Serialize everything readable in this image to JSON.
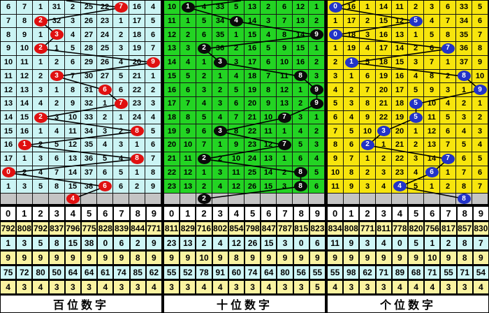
{
  "column_headers": [
    "0",
    "1",
    "2",
    "3",
    "4",
    "5",
    "6",
    "7",
    "8",
    "9"
  ],
  "colors": {
    "grid_line": "#161616",
    "gray_row_bg": "#c4c4c4",
    "stat_yellow": "#faf3a1",
    "stat_cyan": "#cff6f6",
    "header_bg": "#ffffff",
    "trend_line": "#000000"
  },
  "panels": [
    {
      "id": "hundreds",
      "footer": "百位数字",
      "colors": {
        "bg": "#cbf4f4",
        "circle": "#e01010"
      },
      "entry_x": 94,
      "rows": [
        [
          "6",
          "7",
          "1",
          "31",
          "2",
          "25",
          "22",
          "7",
          "16",
          "4"
        ],
        [
          "7",
          "8",
          "2",
          "32",
          "3",
          "26",
          "23",
          "1",
          "17",
          "5"
        ],
        [
          "8",
          "9",
          "1",
          "3",
          "4",
          "27",
          "24",
          "2",
          "18",
          "6"
        ],
        [
          "9",
          "10",
          "2",
          "1",
          "5",
          "28",
          "25",
          "3",
          "19",
          "7"
        ],
        [
          "10",
          "11",
          "1",
          "2",
          "6",
          "29",
          "26",
          "4",
          "20",
          "9"
        ],
        [
          "11",
          "12",
          "2",
          "3",
          "7",
          "30",
          "27",
          "5",
          "21",
          "1"
        ],
        [
          "12",
          "13",
          "3",
          "1",
          "8",
          "31",
          "6",
          "6",
          "22",
          "2"
        ],
        [
          "13",
          "14",
          "4",
          "2",
          "9",
          "32",
          "1",
          "7",
          "23",
          "3"
        ],
        [
          "14",
          "15",
          "2",
          "3",
          "10",
          "33",
          "2",
          "1",
          "24",
          "4"
        ],
        [
          "15",
          "16",
          "1",
          "4",
          "11",
          "34",
          "3",
          "2",
          "8",
          "5"
        ],
        [
          "16",
          "1",
          "2",
          "5",
          "12",
          "35",
          "4",
          "3",
          "1",
          "6"
        ],
        [
          "17",
          "1",
          "3",
          "6",
          "13",
          "36",
          "5",
          "4",
          "8",
          "7"
        ],
        [
          "0",
          "2",
          "4",
          "7",
          "14",
          "37",
          "6",
          "5",
          "1",
          "8"
        ],
        [
          "1",
          "3",
          "5",
          "8",
          "15",
          "38",
          "6",
          "6",
          "2",
          "9"
        ]
      ],
      "circle_cols": [
        7,
        2,
        3,
        2,
        9,
        3,
        6,
        7,
        2,
        8,
        1,
        8,
        0,
        6
      ],
      "gray_circle_col": 4,
      "stats": [
        [
          "792",
          "808",
          "792",
          "837",
          "796",
          "775",
          "828",
          "839",
          "844",
          "771"
        ],
        [
          "1",
          "3",
          "5",
          "8",
          "15",
          "38",
          "0",
          "6",
          "2",
          "9"
        ],
        [
          "9",
          "9",
          "9",
          "9",
          "9",
          "9",
          "9",
          "9",
          "8",
          "9"
        ],
        [
          "75",
          "72",
          "80",
          "50",
          "64",
          "64",
          "61",
          "74",
          "85",
          "62"
        ],
        [
          "4",
          "3",
          "4",
          "3",
          "3",
          "3",
          "4",
          "3",
          "3",
          "4"
        ]
      ]
    },
    {
      "id": "tens",
      "footer": "十位数字",
      "colors": {
        "bg": "#23d423",
        "circle": "#0a0a0a"
      },
      "entry_x": 110,
      "rows": [
        [
          "10",
          "1",
          "4",
          "33",
          "5",
          "13",
          "2",
          "6",
          "12",
          "1"
        ],
        [
          "11",
          "1",
          "5",
          "34",
          "4",
          "14",
          "3",
          "7",
          "13",
          "2"
        ],
        [
          "12",
          "2",
          "6",
          "35",
          "1",
          "15",
          "4",
          "8",
          "14",
          "9"
        ],
        [
          "13",
          "3",
          "2",
          "36",
          "2",
          "16",
          "5",
          "9",
          "15",
          "1"
        ],
        [
          "14",
          "4",
          "1",
          "3",
          "3",
          "17",
          "6",
          "10",
          "16",
          "2"
        ],
        [
          "15",
          "5",
          "2",
          "1",
          "4",
          "18",
          "7",
          "11",
          "8",
          "3"
        ],
        [
          "16",
          "6",
          "3",
          "2",
          "5",
          "19",
          "8",
          "12",
          "1",
          "9"
        ],
        [
          "17",
          "7",
          "4",
          "3",
          "6",
          "20",
          "9",
          "13",
          "2",
          "9"
        ],
        [
          "18",
          "8",
          "5",
          "4",
          "7",
          "21",
          "10",
          "7",
          "3",
          "1"
        ],
        [
          "19",
          "9",
          "6",
          "3",
          "8",
          "22",
          "11",
          "1",
          "4",
          "2"
        ],
        [
          "20",
          "10",
          "7",
          "1",
          "9",
          "23",
          "12",
          "7",
          "5",
          "3"
        ],
        [
          "21",
          "11",
          "2",
          "2",
          "10",
          "24",
          "13",
          "1",
          "6",
          "4"
        ],
        [
          "22",
          "12",
          "1",
          "3",
          "11",
          "25",
          "14",
          "2",
          "8",
          "5"
        ],
        [
          "23",
          "13",
          "2",
          "4",
          "12",
          "26",
          "15",
          "3",
          "8",
          "6"
        ]
      ],
      "circle_cols": [
        1,
        4,
        9,
        2,
        3,
        8,
        9,
        9,
        7,
        3,
        7,
        2,
        8,
        8
      ],
      "gray_circle_col": 2,
      "stats": [
        [
          "811",
          "829",
          "716",
          "802",
          "854",
          "798",
          "847",
          "787",
          "815",
          "823"
        ],
        [
          "23",
          "13",
          "2",
          "4",
          "12",
          "26",
          "15",
          "3",
          "0",
          "6"
        ],
        [
          "9",
          "9",
          "10",
          "9",
          "8",
          "9",
          "9",
          "9",
          "9",
          "9"
        ],
        [
          "55",
          "52",
          "78",
          "91",
          "60",
          "74",
          "64",
          "80",
          "56",
          "55"
        ],
        [
          "3",
          "3",
          "4",
          "4",
          "3",
          "3",
          "4",
          "3",
          "3",
          "5"
        ]
      ]
    },
    {
      "id": "units",
      "footer": "个位数字",
      "colors": {
        "bg": "#f7e50d",
        "circle": "#2233c8"
      },
      "entry_x": 40,
      "rows": [
        [
          "0",
          "16",
          "1",
          "14",
          "11",
          "2",
          "3",
          "6",
          "33",
          "5"
        ],
        [
          "1",
          "17",
          "2",
          "15",
          "12",
          "5",
          "4",
          "7",
          "34",
          "6"
        ],
        [
          "0",
          "18",
          "3",
          "16",
          "13",
          "1",
          "5",
          "8",
          "35",
          "7"
        ],
        [
          "1",
          "19",
          "4",
          "17",
          "14",
          "2",
          "6",
          "7",
          "36",
          "8"
        ],
        [
          "2",
          "1",
          "5",
          "18",
          "15",
          "3",
          "7",
          "1",
          "37",
          "9"
        ],
        [
          "3",
          "1",
          "6",
          "19",
          "16",
          "4",
          "8",
          "2",
          "8",
          "10"
        ],
        [
          "4",
          "2",
          "7",
          "20",
          "17",
          "5",
          "9",
          "3",
          "1",
          "9"
        ],
        [
          "5",
          "3",
          "8",
          "21",
          "18",
          "5",
          "10",
          "4",
          "2",
          "1"
        ],
        [
          "6",
          "4",
          "9",
          "22",
          "19",
          "5",
          "11",
          "5",
          "3",
          "2"
        ],
        [
          "7",
          "5",
          "10",
          "3",
          "20",
          "1",
          "12",
          "6",
          "4",
          "3"
        ],
        [
          "8",
          "6",
          "2",
          "1",
          "21",
          "2",
          "13",
          "7",
          "5",
          "4"
        ],
        [
          "9",
          "7",
          "1",
          "2",
          "22",
          "3",
          "14",
          "7",
          "6",
          "5"
        ],
        [
          "10",
          "8",
          "2",
          "3",
          "23",
          "4",
          "6",
          "1",
          "7",
          "6"
        ],
        [
          "11",
          "9",
          "3",
          "4",
          "4",
          "5",
          "1",
          "2",
          "8",
          "7"
        ]
      ],
      "circle_cols": [
        0,
        5,
        0,
        7,
        1,
        8,
        9,
        5,
        5,
        3,
        2,
        7,
        6,
        4
      ],
      "gray_circle_col": 8,
      "stats": [
        [
          "834",
          "808",
          "771",
          "811",
          "778",
          "820",
          "756",
          "817",
          "857",
          "830"
        ],
        [
          "11",
          "9",
          "3",
          "4",
          "0",
          "5",
          "1",
          "2",
          "8",
          "7"
        ],
        [
          "9",
          "9",
          "9",
          "9",
          "9",
          "9",
          "10",
          "9",
          "8",
          "9"
        ],
        [
          "55",
          "98",
          "62",
          "71",
          "89",
          "68",
          "71",
          "55",
          "71",
          "54"
        ],
        [
          "4",
          "3",
          "3",
          "3",
          "4",
          "4",
          "4",
          "3",
          "3",
          "4"
        ]
      ]
    }
  ],
  "chart_data": [
    {
      "type": "line",
      "title": "百位数字",
      "x": [
        1,
        2,
        3,
        4,
        5,
        6,
        7,
        8,
        9,
        10,
        11,
        12,
        13,
        14,
        15
      ],
      "series": [
        {
          "name": "百位数字",
          "values": [
            7,
            2,
            3,
            2,
            9,
            3,
            6,
            7,
            2,
            8,
            1,
            8,
            0,
            6,
            4
          ]
        }
      ],
      "ylim": [
        0,
        9
      ],
      "xlabel": "",
      "ylabel": ""
    },
    {
      "type": "line",
      "title": "十位数字",
      "x": [
        1,
        2,
        3,
        4,
        5,
        6,
        7,
        8,
        9,
        10,
        11,
        12,
        13,
        14,
        15
      ],
      "series": [
        {
          "name": "十位数字",
          "values": [
            1,
            4,
            9,
            2,
            3,
            8,
            9,
            9,
            7,
            3,
            7,
            2,
            8,
            8,
            2
          ]
        }
      ],
      "ylim": [
        0,
        9
      ],
      "xlabel": "",
      "ylabel": ""
    },
    {
      "type": "line",
      "title": "个位数字",
      "x": [
        1,
        2,
        3,
        4,
        5,
        6,
        7,
        8,
        9,
        10,
        11,
        12,
        13,
        14,
        15
      ],
      "series": [
        {
          "name": "个位数字",
          "values": [
            0,
            5,
            0,
            7,
            1,
            8,
            9,
            5,
            5,
            3,
            2,
            7,
            6,
            4,
            8
          ]
        }
      ],
      "ylim": [
        0,
        9
      ],
      "xlabel": "",
      "ylabel": ""
    }
  ]
}
